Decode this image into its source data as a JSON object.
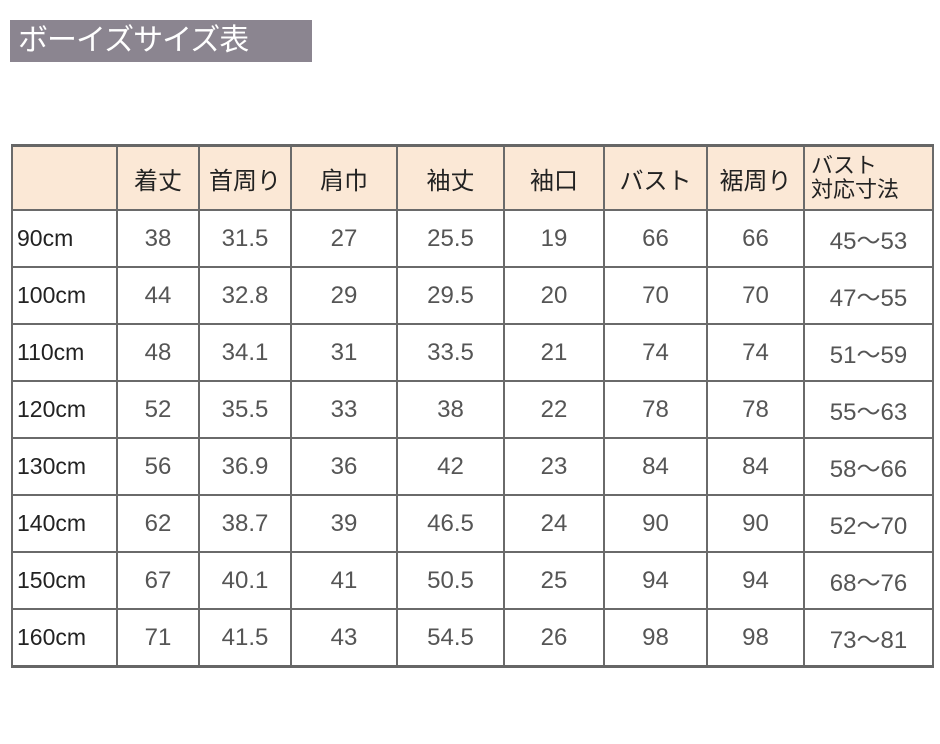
{
  "title": "ボーイズサイズ表",
  "table": {
    "headers": [
      "",
      "着丈",
      "首周り",
      "肩巾",
      "袖丈",
      "袖口",
      "バスト",
      "裾周り",
      "バスト\n対応寸法"
    ],
    "header_last_lines": [
      "バスト",
      "対応寸法"
    ],
    "rows": [
      [
        "90cm",
        "38",
        "31.5",
        "27",
        "25.5",
        "19",
        "66",
        "66",
        "45～53"
      ],
      [
        "100cm",
        "44",
        "32.8",
        "29",
        "29.5",
        "20",
        "70",
        "70",
        "47～55"
      ],
      [
        "110cm",
        "48",
        "34.1",
        "31",
        "33.5",
        "21",
        "74",
        "74",
        "51～59"
      ],
      [
        "120cm",
        "52",
        "35.5",
        "33",
        "38",
        "22",
        "78",
        "78",
        "55～63"
      ],
      [
        "130cm",
        "56",
        "36.9",
        "36",
        "42",
        "23",
        "84",
        "84",
        "58～66"
      ],
      [
        "140cm",
        "62",
        "38.7",
        "39",
        "46.5",
        "24",
        "90",
        "90",
        "52～70"
      ],
      [
        "150cm",
        "67",
        "40.1",
        "41",
        "50.5",
        "25",
        "94",
        "94",
        "68～76"
      ],
      [
        "160cm",
        "71",
        "41.5",
        "43",
        "54.5",
        "26",
        "98",
        "98",
        "73～81"
      ]
    ]
  },
  "colors": {
    "title_bg": "#8b8590",
    "header_bg": "#fbe8d6",
    "border": "#6a6a6a"
  }
}
